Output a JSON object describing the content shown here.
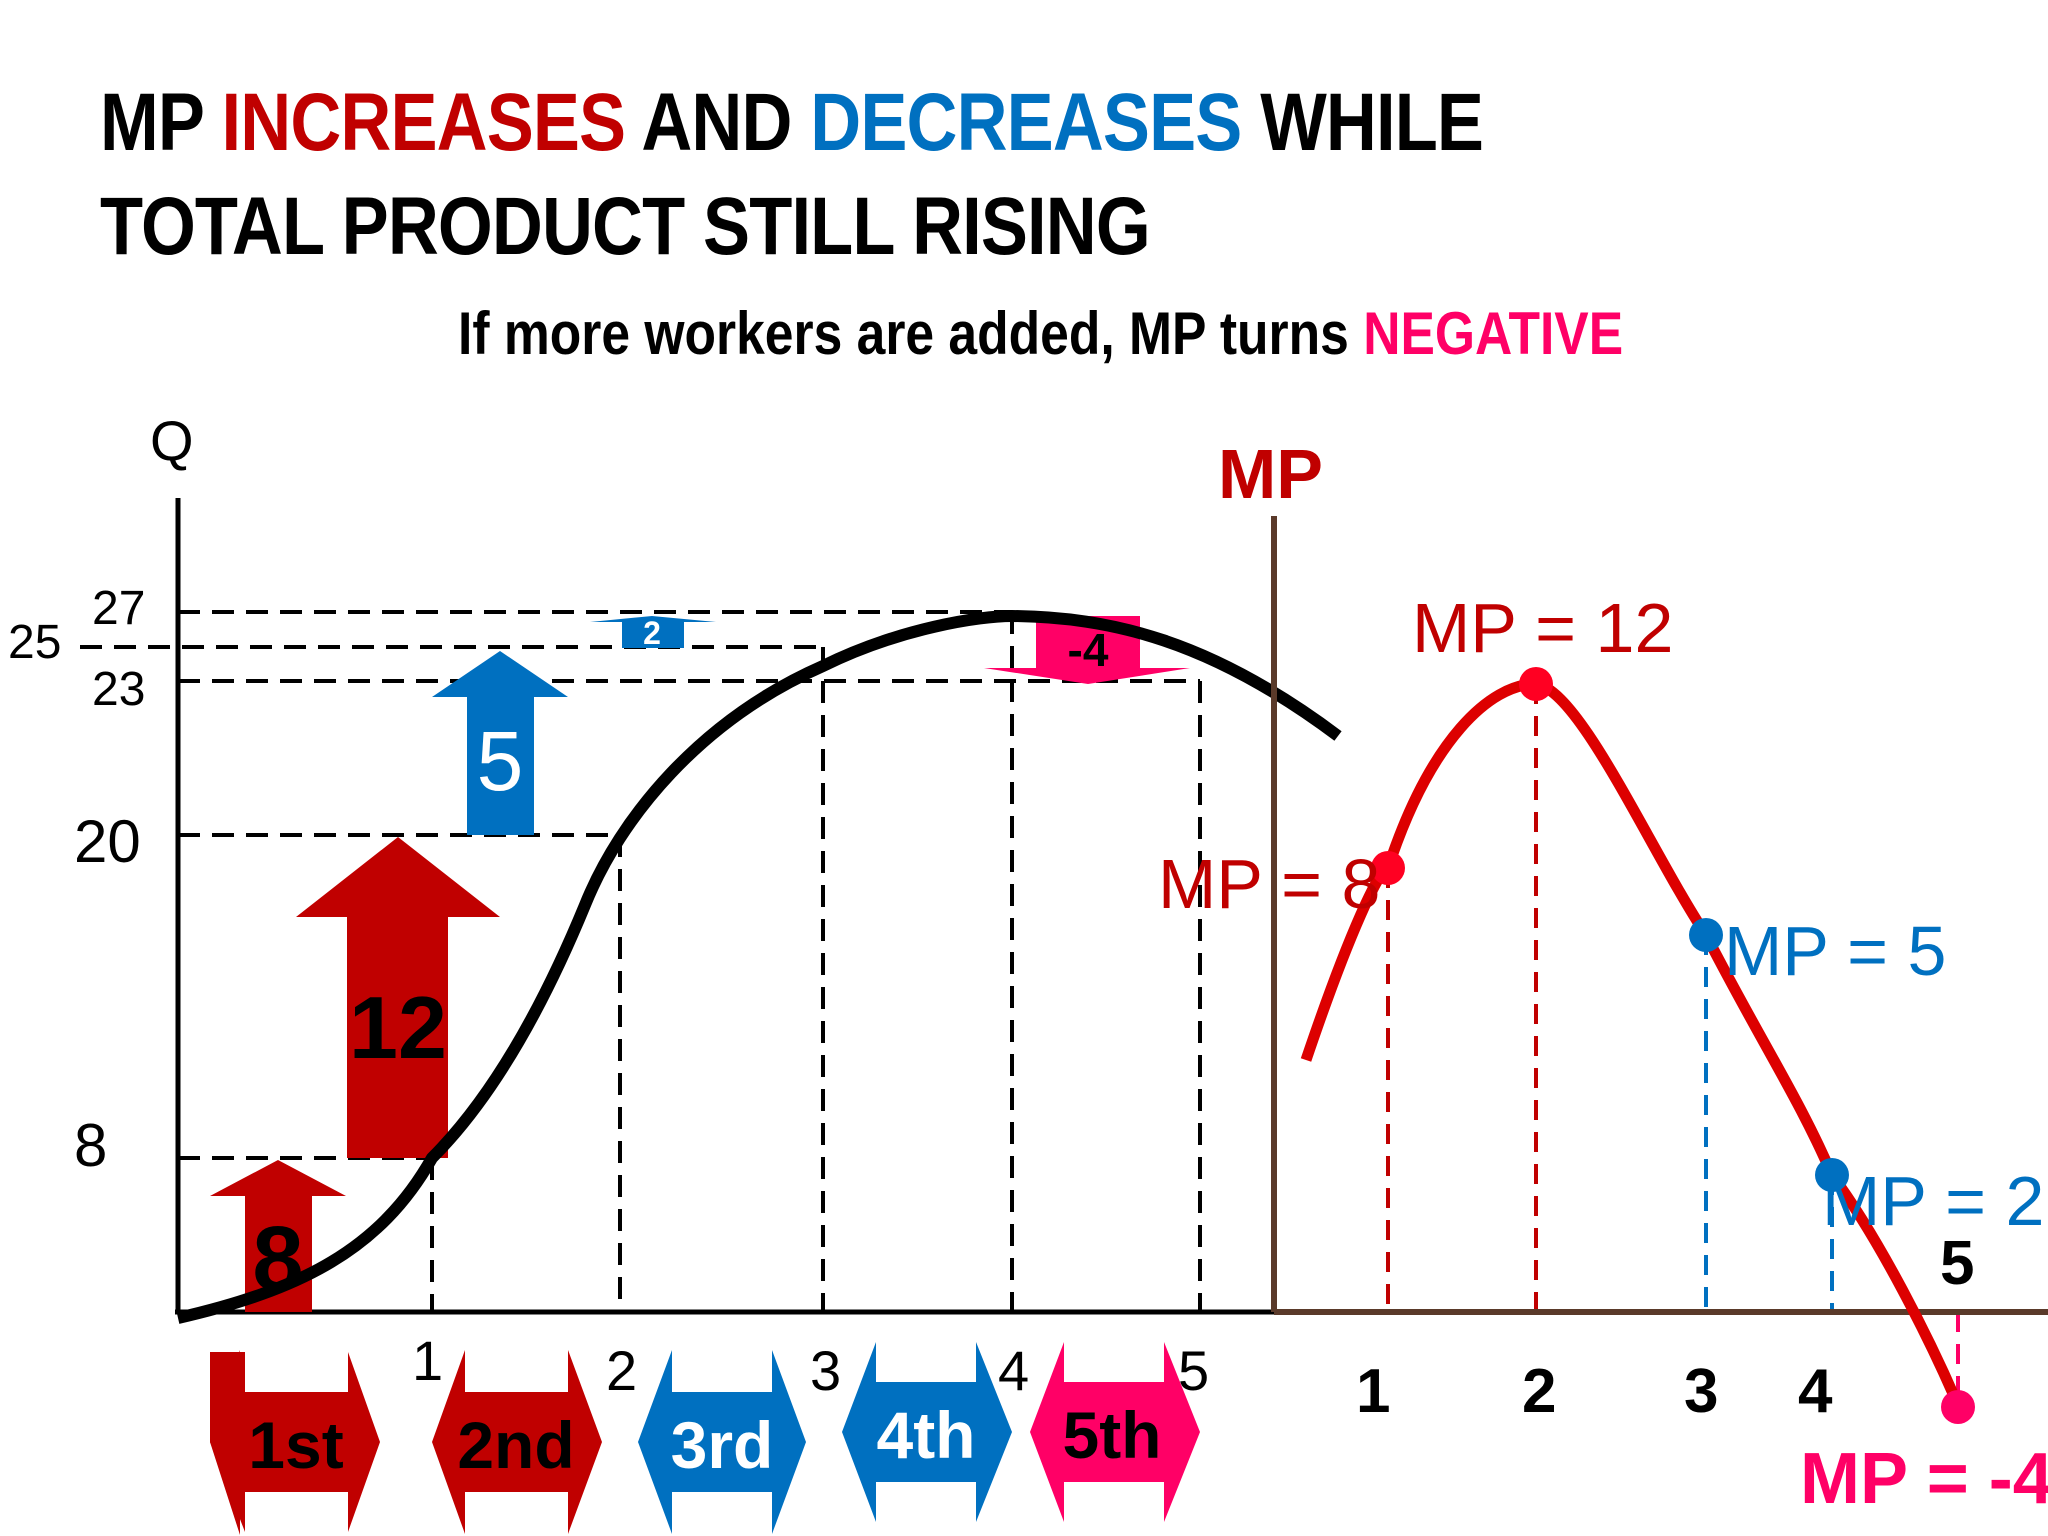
{
  "title": {
    "line1_a": "MP ",
    "line1_b": "INCREASES",
    "line1_c": " AND ",
    "line1_d": "DECREASES",
    "line1_e": " WHILE",
    "line2": "TOTAL PRODUCT STILL RISING",
    "subtitle_a": "If more workers are added, MP turns ",
    "subtitle_b": "NEGATIVE"
  },
  "tp_chart": {
    "y_axis_label": "Q",
    "y_ticks": [
      "8",
      "20",
      "23",
      "25",
      "27"
    ],
    "x_ticks": [
      "1",
      "2",
      "3",
      "4",
      "5"
    ],
    "workers": [
      1,
      2,
      3,
      4,
      5
    ],
    "total_product": [
      8,
      20,
      25,
      27,
      23
    ],
    "increments": [
      "8",
      "12",
      "5",
      "2",
      "-4"
    ],
    "worker_labels": [
      "1st",
      "2nd",
      "3rd",
      "4th",
      "5th"
    ]
  },
  "mp_chart": {
    "y_axis_label": "MP",
    "x_ticks": [
      "1",
      "2",
      "3",
      "4",
      "5"
    ],
    "points": [
      {
        "x": 1,
        "mp": 8,
        "label": "MP = 8"
      },
      {
        "x": 2,
        "mp": 12,
        "label": "MP = 12"
      },
      {
        "x": 3,
        "mp": 5,
        "label": "MP = 5"
      },
      {
        "x": 4,
        "mp": 2,
        "label": "MP = 2"
      },
      {
        "x": 5,
        "mp": -4,
        "label": "MP = -4"
      }
    ]
  },
  "colors": {
    "increase_red": "#c00000",
    "decrease_blue": "#0070c0",
    "negative_pink": "#ff0066",
    "axis_brown": "#5a3a2a"
  }
}
